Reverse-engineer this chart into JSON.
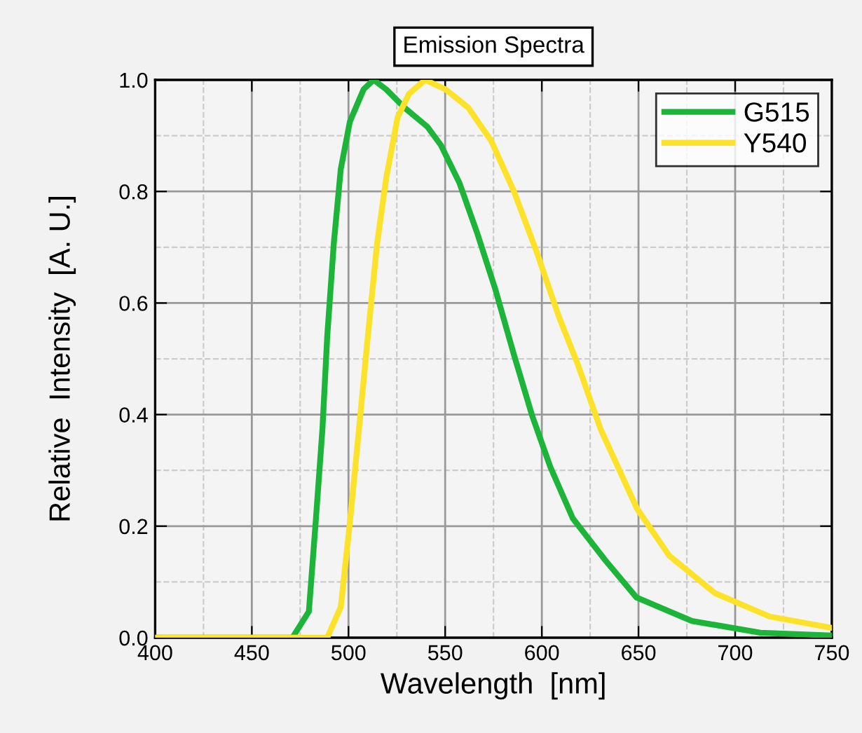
{
  "chart_data": {
    "type": "line",
    "title": "Emission Spectra",
    "xlabel": "Wavelength  [nm]",
    "ylabel": "Relative  Intensity  [A. U.]",
    "xlim": [
      400,
      750
    ],
    "ylim": [
      0,
      1.0
    ],
    "xticks": [
      400,
      450,
      500,
      550,
      600,
      650,
      700,
      750
    ],
    "yticks": [
      {
        "value": 0,
        "label": "0.0"
      },
      {
        "value": 0.2,
        "label": "0.2"
      },
      {
        "value": 0.4,
        "label": "0.4"
      },
      {
        "value": 0.6,
        "label": "0.6"
      },
      {
        "value": 0.8,
        "label": "0.8"
      },
      {
        "value": 1.0,
        "label": "1.0"
      }
    ],
    "grid": true,
    "legend": "top right",
    "marker": "none",
    "line_style": "solid",
    "series": [
      {
        "name": "G515",
        "color": "#1db43a",
        "x": [
          400,
          471,
          479.5,
          483,
          486.5,
          489,
          492.4,
          496,
          500.7,
          507.8,
          513,
          519.5,
          529,
          540.8,
          547.8,
          557.3,
          566.7,
          576,
          585.6,
          595,
          604.4,
          616,
          632.8,
          649,
          677.6,
          713,
          750
        ],
        "values": [
          0,
          0,
          0.047,
          0.206,
          0.373,
          0.54,
          0.707,
          0.84,
          0.925,
          0.983,
          1.0,
          0.983,
          0.95,
          0.916,
          0.883,
          0.816,
          0.724,
          0.624,
          0.507,
          0.398,
          0.306,
          0.214,
          0.139,
          0.072,
          0.03,
          0.009,
          0.004
        ]
      },
      {
        "name": "Y540",
        "color": "#fde22a",
        "x": [
          400,
          489,
          496,
          500.7,
          505.4,
          510,
          514.8,
          519.5,
          525.4,
          531.3,
          539.6,
          550.2,
          562,
          573.8,
          585.6,
          597.4,
          609,
          618.6,
          630.5,
          649.3,
          665.9,
          689.5,
          717.8,
          749.6
        ],
        "values": [
          0,
          0,
          0.055,
          0.206,
          0.373,
          0.54,
          0.707,
          0.824,
          0.933,
          0.975,
          1.0,
          0.983,
          0.95,
          0.891,
          0.8,
          0.691,
          0.574,
          0.49,
          0.373,
          0.231,
          0.147,
          0.08,
          0.038,
          0.018
        ]
      }
    ]
  }
}
